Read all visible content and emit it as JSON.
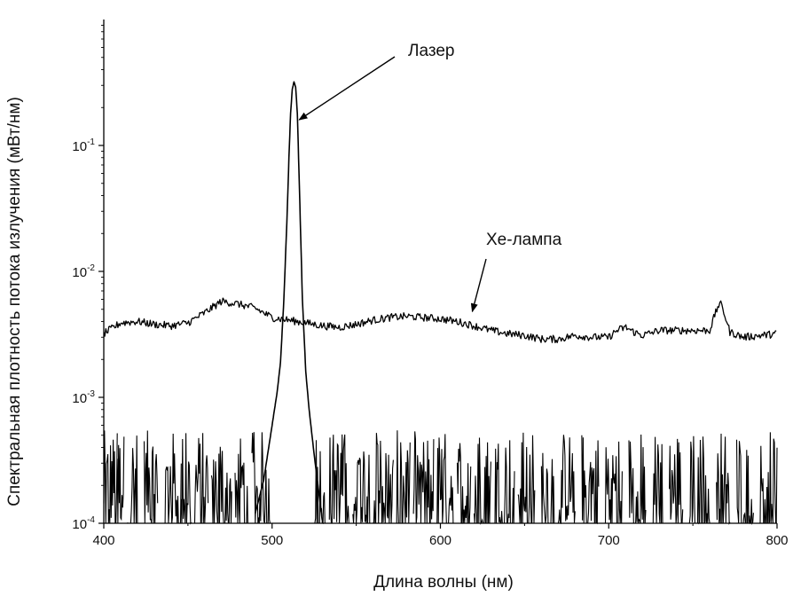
{
  "chart_data": {
    "type": "line",
    "title": "",
    "xlabel": "Длина волны (нм)",
    "ylabel": "Спектральная плотность потока излучения (мВт/нм)",
    "xlim": [
      400,
      800
    ],
    "ylim": [
      0.0001,
      1
    ],
    "yscale": "log",
    "grid": false,
    "legend": "none",
    "x_ticks": [
      400,
      500,
      600,
      700,
      800
    ],
    "y_ticks": [
      {
        "value": 0.0001,
        "base": "10",
        "exp": "-4"
      },
      {
        "value": 0.001,
        "base": "10",
        "exp": "-3"
      },
      {
        "value": 0.01,
        "base": "10",
        "exp": "-2"
      },
      {
        "value": 0.1,
        "base": "10",
        "exp": "-1"
      }
    ],
    "series": [
      {
        "key": "laser",
        "x": [
          400,
          480,
          490,
          495,
          500,
          503,
          505,
          507,
          509,
          510,
          511,
          512,
          513,
          514,
          515,
          516,
          518,
          520,
          522,
          525,
          530,
          600,
          700,
          800
        ],
        "y": [
          0.0001,
          0.0001,
          0.00012,
          0.00022,
          0.0006,
          0.0011,
          0.0019,
          0.006,
          0.03,
          0.08,
          0.18,
          0.28,
          0.32,
          0.29,
          0.18,
          0.06,
          0.006,
          0.0016,
          0.0008,
          0.00035,
          0.0001,
          0.0001,
          0.0001,
          0.0001
        ]
      },
      {
        "key": "xe_lamp",
        "x": [
          400,
          410,
          420,
          430,
          440,
          450,
          460,
          470,
          480,
          490,
          500,
          510,
          520,
          530,
          540,
          550,
          560,
          570,
          580,
          590,
          600,
          610,
          620,
          630,
          640,
          650,
          660,
          670,
          680,
          690,
          700,
          705,
          710,
          715,
          720,
          730,
          740,
          750,
          760,
          763,
          766,
          769,
          772,
          780,
          790,
          800
        ],
        "y": [
          0.0032,
          0.0039,
          0.004,
          0.0038,
          0.0037,
          0.0039,
          0.0047,
          0.0058,
          0.0055,
          0.0051,
          0.0043,
          0.0041,
          0.0039,
          0.0037,
          0.0036,
          0.0038,
          0.0041,
          0.0043,
          0.0044,
          0.0043,
          0.0042,
          0.004,
          0.0037,
          0.0034,
          0.0032,
          0.0031,
          0.0029,
          0.0029,
          0.0031,
          0.003,
          0.003,
          0.0034,
          0.0036,
          0.0033,
          0.0031,
          0.0034,
          0.0034,
          0.0034,
          0.0034,
          0.0045,
          0.0057,
          0.0045,
          0.0033,
          0.003,
          0.0031,
          0.0032
        ]
      }
    ],
    "noise_floor": {
      "segments": [
        [
          400,
          408
        ],
        [
          408,
          412
        ],
        [
          414,
          420
        ],
        [
          424,
          432
        ],
        [
          436,
          446
        ],
        [
          446,
          452
        ],
        [
          454,
          462
        ],
        [
          464,
          476
        ],
        [
          478,
          486
        ],
        [
          488,
          500
        ],
        [
          525,
          532
        ],
        [
          534,
          546
        ],
        [
          548,
          558
        ],
        [
          560,
          572
        ],
        [
          574,
          582
        ],
        [
          584,
          596
        ],
        [
          598,
          608
        ],
        [
          610,
          618
        ],
        [
          620,
          630
        ],
        [
          632,
          644
        ],
        [
          646,
          656
        ],
        [
          660,
          668
        ],
        [
          670,
          680
        ],
        [
          684,
          694
        ],
        [
          698,
          708
        ],
        [
          712,
          722
        ],
        [
          726,
          732
        ],
        [
          736,
          744
        ],
        [
          748,
          760
        ],
        [
          764,
          772
        ],
        [
          776,
          786
        ],
        [
          790,
          800
        ]
      ],
      "peak_max": 0.00055
    },
    "annotations": [
      {
        "text": "Лазер",
        "points_to": [
          514,
          0.16
        ]
      },
      {
        "text": "Хе-лампа",
        "points_to": [
          620,
          0.0048
        ]
      }
    ]
  }
}
